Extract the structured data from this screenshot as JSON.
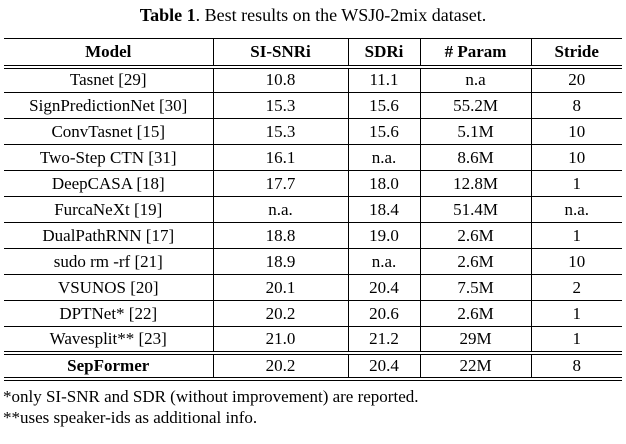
{
  "caption": {
    "label": "Table 1",
    "text": ". Best results on the WSJ0-2mix dataset."
  },
  "table": {
    "headers": [
      "Model",
      "SI-SNRi",
      "SDRi",
      "# Param",
      "Stride"
    ],
    "rows": [
      {
        "cells": [
          "Tasnet [29]",
          "10.8",
          "11.1",
          "n.a",
          "20"
        ]
      },
      {
        "cells": [
          "SignPredictionNet [30]",
          "15.3",
          "15.6",
          "55.2M",
          "8"
        ]
      },
      {
        "cells": [
          "ConvTasnet [15]",
          "15.3",
          "15.6",
          "5.1M",
          "10"
        ]
      },
      {
        "cells": [
          "Two-Step CTN [31]",
          "16.1",
          "n.a.",
          "8.6M",
          "10"
        ]
      },
      {
        "cells": [
          "DeepCASA [18]",
          "17.7",
          "18.0",
          "12.8M",
          "1"
        ]
      },
      {
        "cells": [
          "FurcaNeXt [19]",
          "n.a.",
          "18.4",
          "51.4M",
          "n.a."
        ]
      },
      {
        "cells": [
          "DualPathRNN [17]",
          "18.8",
          "19.0",
          "2.6M",
          "1"
        ]
      },
      {
        "cells": [
          "sudo rm -rf [21]",
          "18.9",
          "n.a.",
          "2.6M",
          "10"
        ]
      },
      {
        "cells": [
          "VSUNOS [20]",
          "20.1",
          "20.4",
          "7.5M",
          "2"
        ]
      },
      {
        "cells": [
          "DPTNet* [22]",
          "20.2",
          "20.6",
          "2.6M",
          "1"
        ]
      },
      {
        "cells": [
          "Wavesplit** [23]",
          "21.0",
          "21.2",
          "29M",
          "1"
        ]
      },
      {
        "cells": [
          "SepFormer",
          "20.2",
          "20.4",
          "22M",
          "8"
        ],
        "emphasis": true
      }
    ]
  },
  "footnotes": [
    "*only SI-SNR and SDR (without improvement) are reported.",
    "**uses speaker-ids as additional info."
  ]
}
